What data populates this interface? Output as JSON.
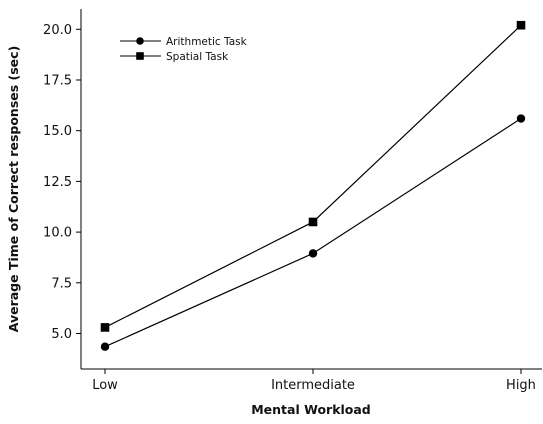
{
  "chart_data": {
    "type": "line",
    "categories": [
      "Low",
      "Intermediate",
      "High"
    ],
    "series": [
      {
        "name": "Arithmetic Task",
        "marker": "circle",
        "values": [
          4.35,
          8.95,
          15.6
        ]
      },
      {
        "name": "Spatial Task",
        "marker": "square",
        "values": [
          5.3,
          10.5,
          20.2
        ]
      }
    ],
    "xlabel": "Mental Workload",
    "ylabel": "Average Time of Correct responses (sec)",
    "ylim": [
      3.25,
      21.0
    ],
    "yticks": [
      5.0,
      7.5,
      10.0,
      12.5,
      15.0,
      17.5,
      20.0
    ],
    "ytick_labels": [
      "5.0",
      "7.5",
      "10.0",
      "12.5",
      "15.0",
      "17.5",
      "20.0"
    ],
    "legend_position": "top-left",
    "grid": false,
    "colors": {
      "line": "#000000"
    }
  }
}
